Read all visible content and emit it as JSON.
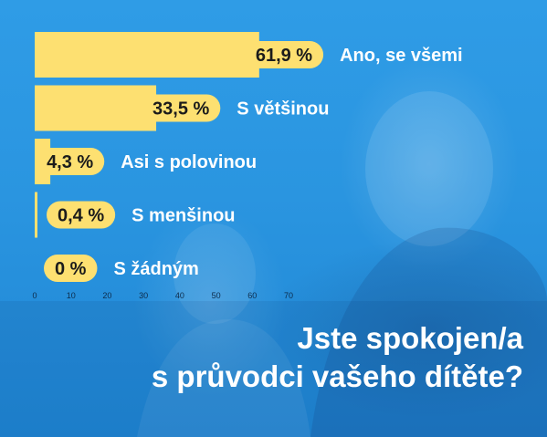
{
  "colors": {
    "background": "#2a95e0",
    "bar": "#fde071",
    "pill": "#fde071",
    "label": "#ffffff",
    "pill_text": "#1b1b1b"
  },
  "title": {
    "line1": "Jste spokojen/a",
    "line2": "s průvodci vašeho dítěte?"
  },
  "chart_data": {
    "type": "bar",
    "orientation": "horizontal",
    "title": "Jste spokojen/a s průvodci vašeho dítěte?",
    "categories": [
      "Ano, se všemi",
      "S většinou",
      "Asi s polovinou",
      "S menšinou",
      "S žádným"
    ],
    "values": [
      61.9,
      33.5,
      4.3,
      0.4,
      0
    ],
    "value_labels": [
      "61,9 %",
      "33,5 %",
      "4,3 %",
      "0,4 %",
      "0 %"
    ],
    "xlim": [
      0,
      70
    ],
    "xticks": [
      "0",
      "10",
      "20",
      "30",
      "40",
      "50",
      "60",
      "70"
    ],
    "grid": false,
    "legend": "none"
  }
}
